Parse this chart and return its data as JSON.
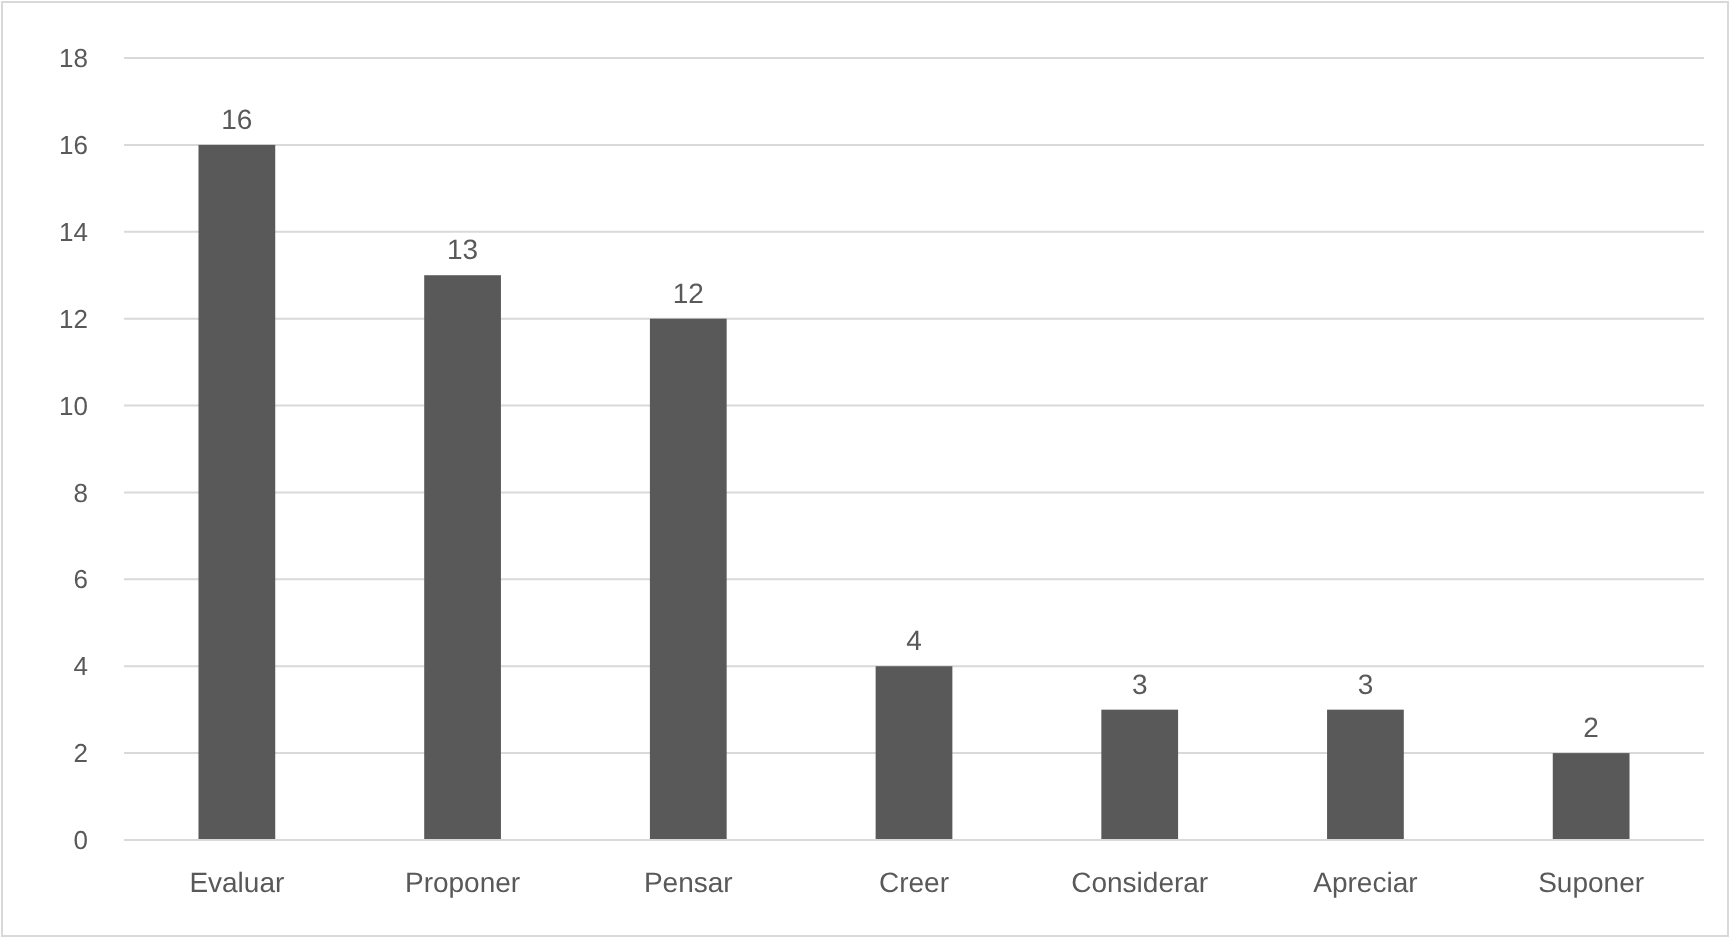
{
  "chart_data": {
    "type": "bar",
    "categories": [
      "Evaluar",
      "Proponer",
      "Pensar",
      "Creer",
      "Considerar",
      "Apreciar",
      "Suponer"
    ],
    "values": [
      16,
      13,
      12,
      4,
      3,
      3,
      2
    ],
    "color": "#595959",
    "ylim": [
      0,
      18
    ],
    "yticks": [
      0,
      2,
      4,
      6,
      8,
      10,
      12,
      14,
      16,
      18
    ],
    "grid": "y",
    "data_labels": true
  }
}
